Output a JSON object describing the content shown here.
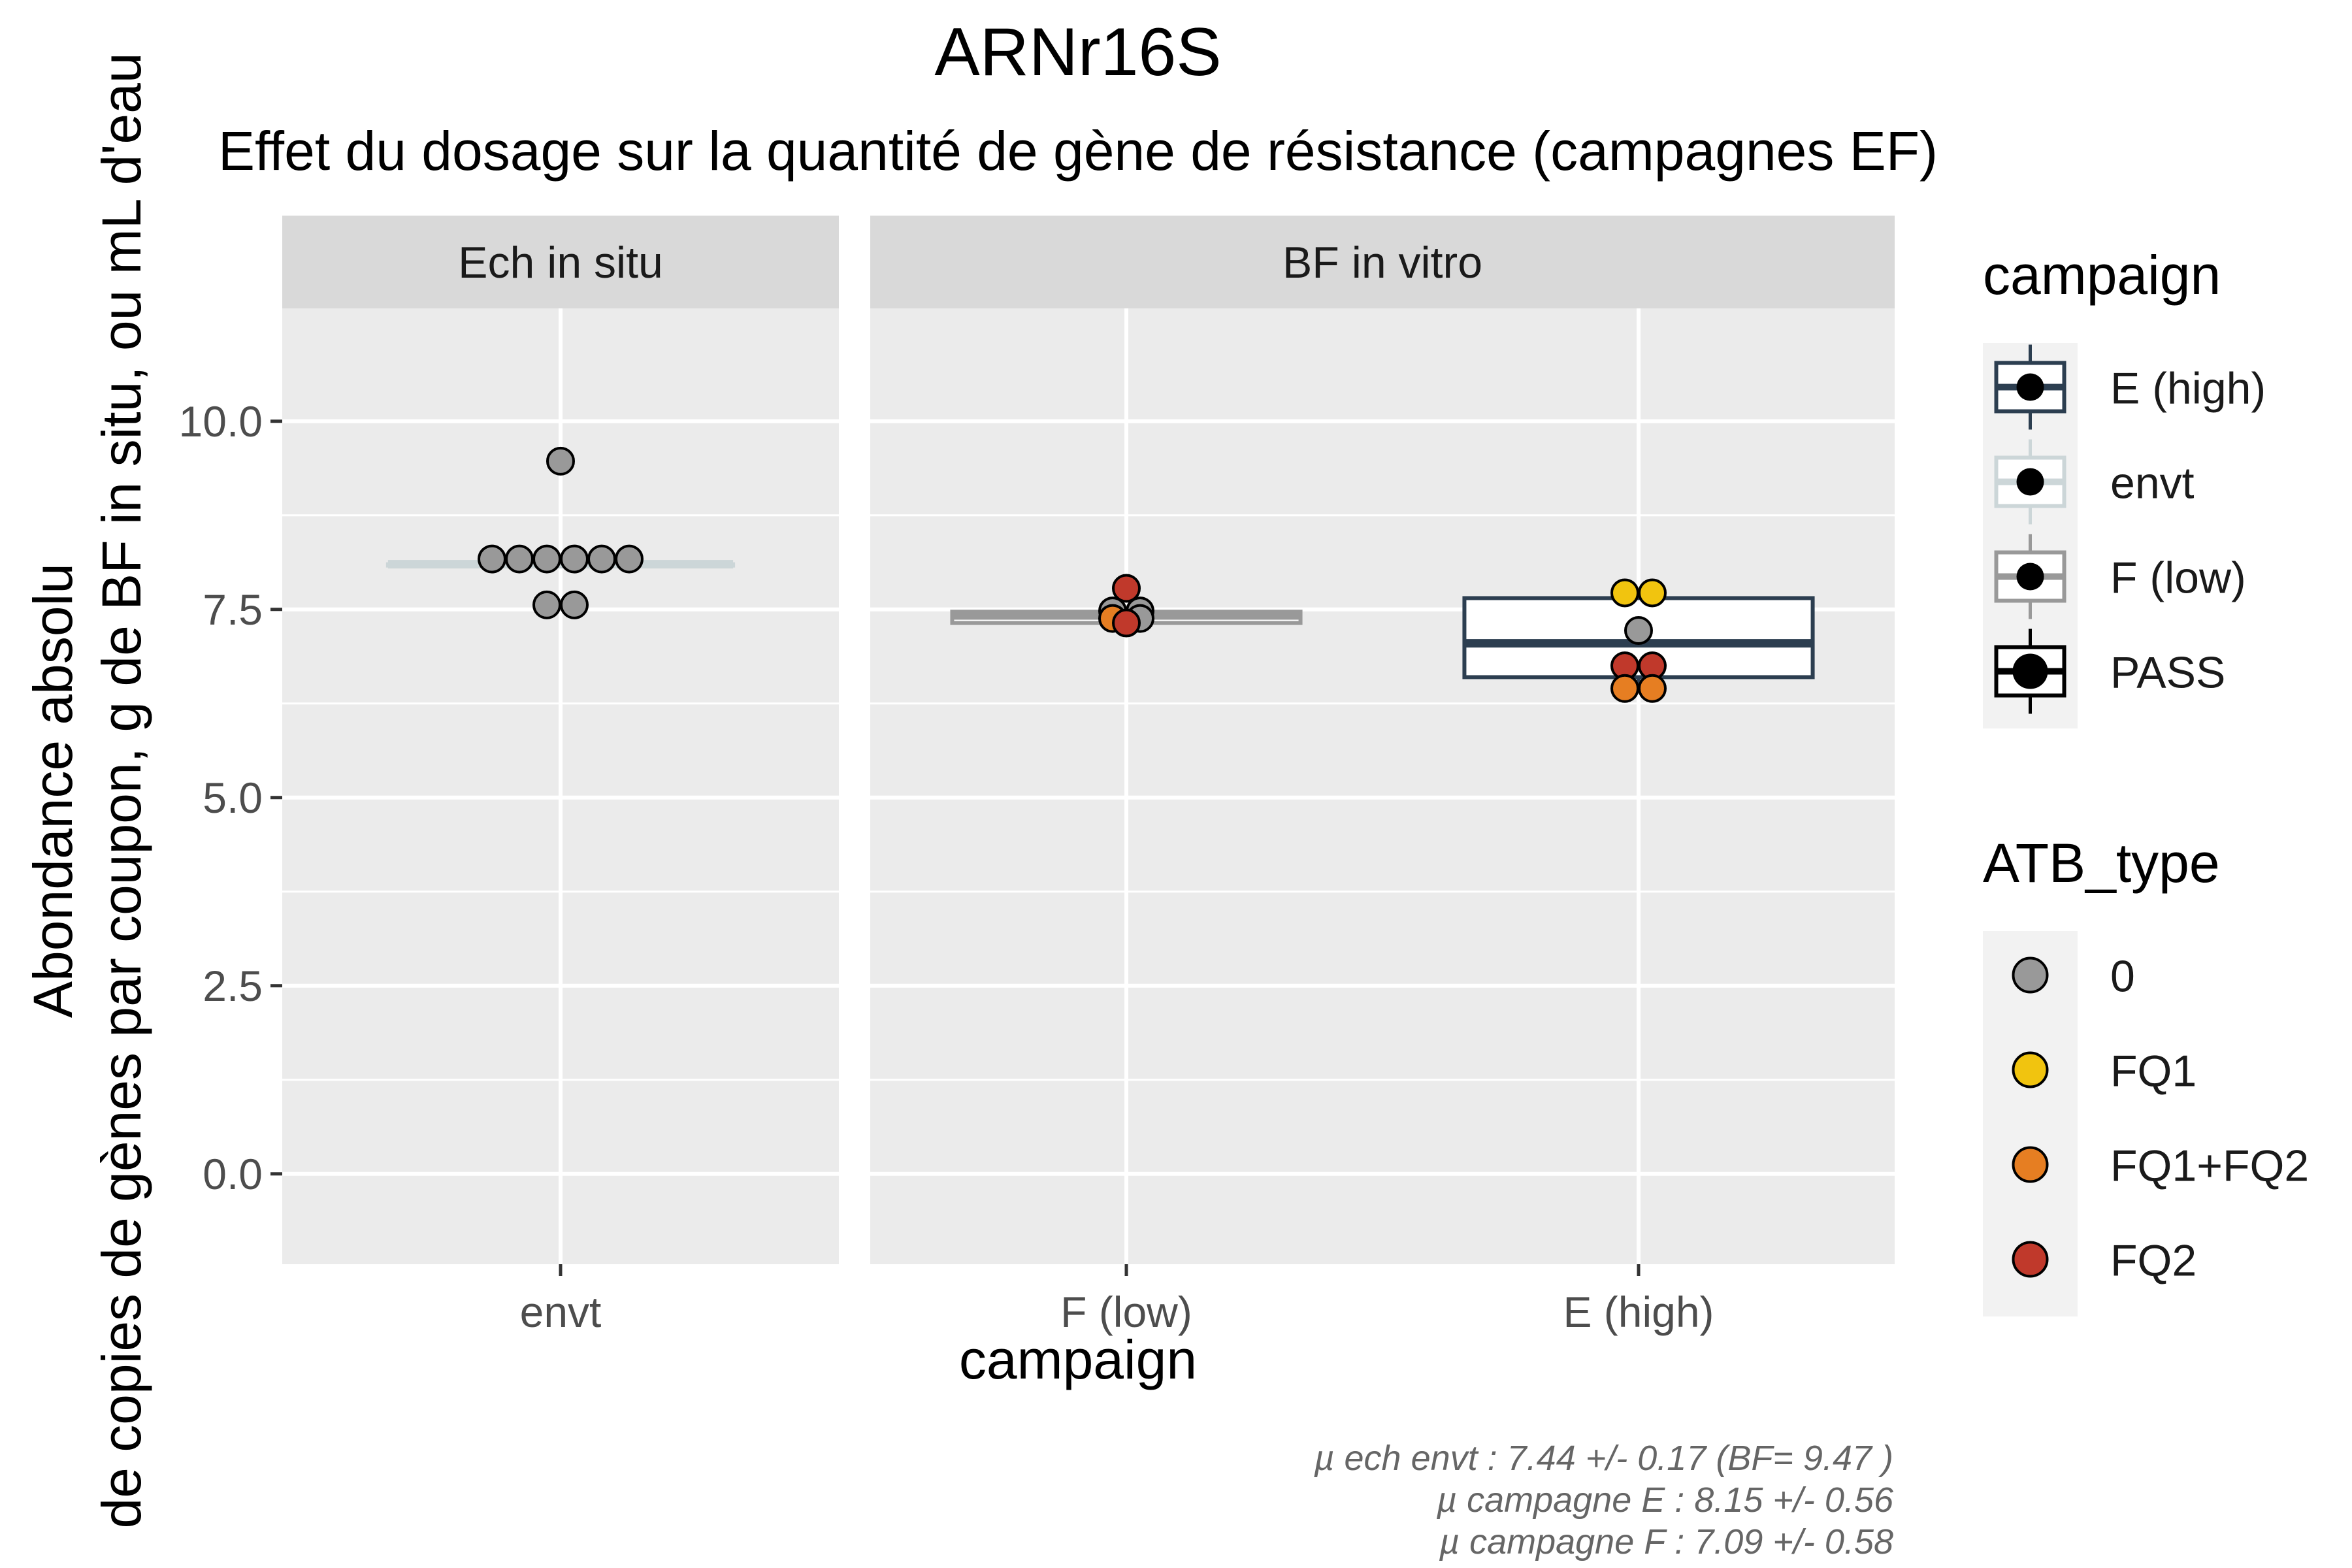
{
  "chart_data": {
    "type": "boxplot",
    "title": "ARNr16S",
    "subtitle": "Effet du dosage sur la quantité de gène de résistance (campagnes EF)",
    "xlabel": "campaign",
    "ylabel": [
      "Abondance absolu",
      "de copies de gènes par coupon, g de BF in situ, ou mL d'eau"
    ],
    "ylim": [
      -1.2,
      11.5
    ],
    "yticks": [
      0.0,
      2.5,
      5.0,
      7.5,
      10.0
    ],
    "ytick_labels": [
      "0.0",
      "2.5",
      "5.0",
      "7.5",
      "10.0"
    ],
    "grid": true,
    "legend_position": "right",
    "caption": [
      "µ ech envt :  7.44 +/- 0.17  (BF= 9.47 )",
      "µ campagne E :  8.15 +/- 0.56",
      "µ campagne F :  7.09 +/- 0.58"
    ],
    "facets": [
      {
        "label": "Ech in situ",
        "categories": [
          "envt"
        ],
        "boxes": [
          {
            "category": "envt",
            "campaign": "envt",
            "q1": 8.1,
            "median": 8.1,
            "q3": 8.1,
            "whisker_low": 8.1,
            "whisker_high": 8.1
          }
        ],
        "points": [
          {
            "category": "envt",
            "y": 9.47,
            "atb": "0",
            "offset": 0
          },
          {
            "category": "envt",
            "y": 8.17,
            "atb": "0",
            "offset": -2.5
          },
          {
            "category": "envt",
            "y": 8.17,
            "atb": "0",
            "offset": -1.5
          },
          {
            "category": "envt",
            "y": 8.17,
            "atb": "0",
            "offset": -0.5
          },
          {
            "category": "envt",
            "y": 8.17,
            "atb": "0",
            "offset": 0.5
          },
          {
            "category": "envt",
            "y": 8.17,
            "atb": "0",
            "offset": 1.5
          },
          {
            "category": "envt",
            "y": 8.17,
            "atb": "0",
            "offset": 2.5
          },
          {
            "category": "envt",
            "y": 7.56,
            "atb": "0",
            "offset": -0.5
          },
          {
            "category": "envt",
            "y": 7.56,
            "atb": "0",
            "offset": 0.5
          }
        ]
      },
      {
        "label": "BF in vitro",
        "categories": [
          "F (low)",
          "E (high)"
        ],
        "boxes": [
          {
            "category": "F (low)",
            "campaign": "F (low)",
            "q1": 7.32,
            "median": 7.42,
            "q3": 7.47,
            "whisker_low": 7.32,
            "whisker_high": 7.47
          },
          {
            "category": "E (high)",
            "campaign": "E (high)",
            "q1": 6.6,
            "median": 7.05,
            "q3": 7.65,
            "whisker_low": 6.45,
            "whisker_high": 7.72
          }
        ],
        "points": [
          {
            "category": "F (low)",
            "y": 7.78,
            "atb": "FQ2",
            "offset": 0
          },
          {
            "category": "F (low)",
            "y": 7.48,
            "atb": "0",
            "offset": -0.5
          },
          {
            "category": "F (low)",
            "y": 7.48,
            "atb": "0",
            "offset": 0.5
          },
          {
            "category": "F (low)",
            "y": 7.38,
            "atb": "FQ1+FQ2",
            "offset": -0.5
          },
          {
            "category": "F (low)",
            "y": 7.38,
            "atb": "0",
            "offset": 0.5
          },
          {
            "category": "F (low)",
            "y": 7.32,
            "atb": "FQ2",
            "offset": 0
          },
          {
            "category": "E (high)",
            "y": 7.72,
            "atb": "FQ1",
            "offset": -0.5
          },
          {
            "category": "E (high)",
            "y": 7.72,
            "atb": "FQ1",
            "offset": 0.5
          },
          {
            "category": "E (high)",
            "y": 7.22,
            "atb": "0",
            "offset": 0
          },
          {
            "category": "E (high)",
            "y": 6.75,
            "atb": "FQ2",
            "offset": -0.5
          },
          {
            "category": "E (high)",
            "y": 6.75,
            "atb": "FQ2",
            "offset": 0.5
          },
          {
            "category": "E (high)",
            "y": 6.45,
            "atb": "FQ1+FQ2",
            "offset": -0.5
          },
          {
            "category": "E (high)",
            "y": 6.45,
            "atb": "FQ1+FQ2",
            "offset": 0.5
          }
        ]
      }
    ],
    "legends": [
      {
        "title": "campaign",
        "type": "box",
        "entries": [
          {
            "label": "E (high)",
            "color": "#2c3e50",
            "fill": "#ffffff"
          },
          {
            "label": "envt",
            "color": "#ccd6d8",
            "fill": "#ffffff"
          },
          {
            "label": "F (low)",
            "color": "#999999",
            "fill": "#ffffff"
          },
          {
            "label": "PASS",
            "color": "#000000",
            "fill": "#ffffff"
          }
        ]
      },
      {
        "title": "ATB_type",
        "type": "point",
        "entries": [
          {
            "label": "0",
            "color": "#999999"
          },
          {
            "label": "FQ1",
            "color": "#f1c40f"
          },
          {
            "label": "FQ1+FQ2",
            "color": "#e67e22"
          },
          {
            "label": "FQ2",
            "color": "#c0392b"
          }
        ]
      }
    ],
    "colors": {
      "panel_bg": "#ebebeb",
      "strip_bg": "#d9d9d9",
      "grid": "#ffffff",
      "text": "#000000",
      "axis_text": "#4d4d4d",
      "caption": "#666666"
    }
  }
}
